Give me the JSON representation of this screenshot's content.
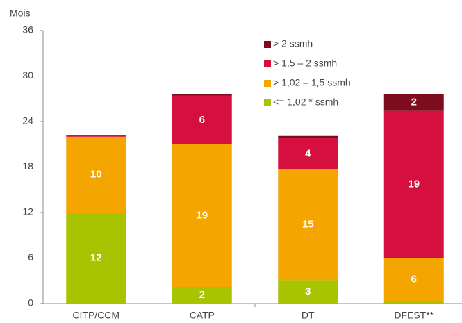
{
  "chart_data": {
    "type": "stacked_bar",
    "y_label": "Mois",
    "categories": [
      "CITP/CCM",
      "CATP",
      "DT",
      "DFEST**"
    ],
    "series": [
      {
        "name": "<= 1,02 * ssmh",
        "color": "#a8c300",
        "values": [
          12,
          2.2,
          3.1,
          0.3
        ],
        "value_labels": [
          "12",
          "2",
          "3",
          null
        ]
      },
      {
        "name": "> 1,02 – 1,5 ssmh",
        "color": "#f5a500",
        "values": [
          10,
          18.8,
          14.6,
          5.7
        ],
        "value_labels": [
          "10",
          "19",
          "15",
          "6"
        ]
      },
      {
        "name": "> 1,5 – 2 ssmh",
        "color": "#d5103e",
        "values": [
          0.2,
          6.4,
          4.1,
          19.4
        ],
        "value_labels": [
          null,
          "6",
          "4",
          "19"
        ]
      },
      {
        "name": "> 2 ssmh",
        "color": "#7d0c1d",
        "values": [
          0,
          0.2,
          0.3,
          2.2
        ],
        "value_labels": [
          null,
          null,
          null,
          "2"
        ]
      }
    ],
    "ylim": [
      0,
      36
    ],
    "yticks": [
      0,
      6,
      12,
      18,
      24,
      30,
      36
    ],
    "legend": "top-right"
  }
}
